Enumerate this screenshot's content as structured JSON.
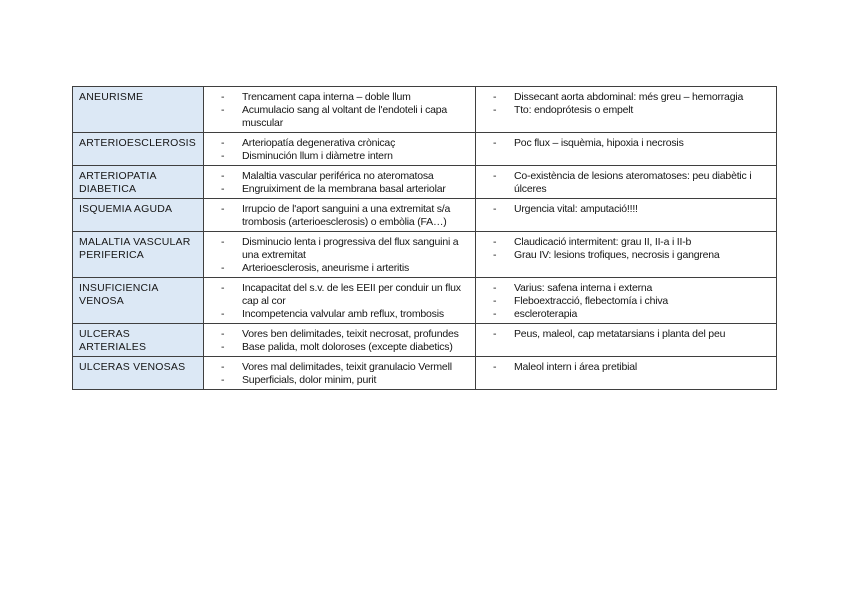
{
  "document": {
    "background": "#ffffff",
    "table": {
      "header_fill": "#dce8f5",
      "border_color": "#3f3f3f",
      "bullet_char": "-",
      "rows": [
        {
          "label": "ANEURISME",
          "middle": [
            "Trencament capa interna – doble llum",
            "Acumulacio sang al voltant de l'endoteli i capa muscular"
          ],
          "right": [
            "Dissecant aorta abdominal: més greu – hemorragia",
            "Tto: endoprótesis o empelt"
          ]
        },
        {
          "label": "ARTERIOESCLEROSIS",
          "middle": [
            "Arteriopatía degenerativa crònicaç",
            "Disminución llum i diàmetre intern"
          ],
          "right": [
            "Poc flux – isquèmia, hipoxia i necrosis"
          ]
        },
        {
          "label": "ARTERIOPATIA DIABETICA",
          "middle": [
            "Malaltia vascular periférica no ateromatosa",
            "Engruiximent de la membrana basal arteriolar"
          ],
          "right": [
            "Co-existència de lesions ateromatoses: peu diabètic i úlceres"
          ]
        },
        {
          "label": "ISQUEMIA AGUDA",
          "middle": [
            "Irrupcio de l'aport sanguini a una extremitat s/a trombosis (arterioesclerosis) o embòlia (FA…)"
          ],
          "right": [
            "Urgencia vital: amputació!!!!"
          ]
        },
        {
          "label": "MALALTIA VASCULAR PERIFERICA",
          "middle": [
            "Disminucio lenta i progressiva del flux sanguini a una extremitat",
            "Arterioesclerosis, aneurisme i arteritis"
          ],
          "right": [
            "Claudicació intermitent: grau II, II-a i II-b",
            "Grau IV: lesions trofiques, necrosis i gangrena"
          ]
        },
        {
          "label": "INSUFICIENCIA VENOSA",
          "middle": [
            "Incapacitat del s.v. de les EEII per conduir un flux cap al cor",
            "Incompetencia valvular amb reflux, trombosis"
          ],
          "right": [
            "Varius: safena interna i externa",
            "Fleboextracció, flebectomía i chiva",
            "escleroterapia"
          ]
        },
        {
          "label": "ULCERAS ARTERIALES",
          "middle": [
            "Vores ben delimitades, teixit necrosat, profundes",
            "Base palida, molt doloroses (excepte diabetics)"
          ],
          "right": [
            "Peus, maleol, cap metatarsians i planta del peu"
          ]
        },
        {
          "label": "ULCERAS VENOSAS",
          "middle": [
            "Vores mal delimitades, teixit granulacio Vermell",
            "Superficials, dolor minim, purit"
          ],
          "right": [
            "Maleol intern i área pretibial"
          ]
        }
      ]
    }
  }
}
